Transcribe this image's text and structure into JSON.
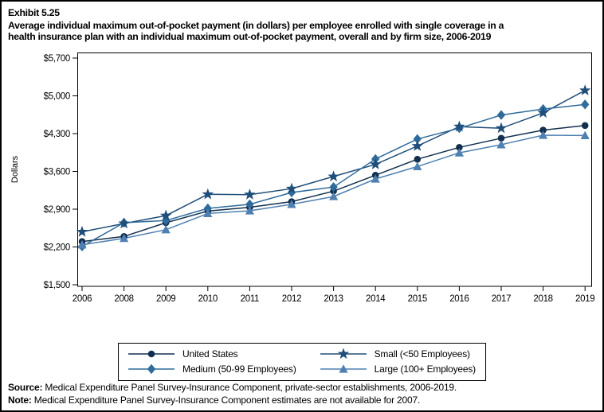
{
  "exhibit": {
    "number": "Exhibit 5.25",
    "title_line1": "Average individual maximum out-of-pocket payment (in dollars) per employee enrolled with single coverage in a",
    "title_line2": "health insurance plan with an individual maximum out-of-pocket payment, overall and by firm size, 2006-2019"
  },
  "chart_data": {
    "type": "line",
    "title": "",
    "xlabel": "",
    "ylabel": "Dollars",
    "x_categories": [
      "2006",
      "2008",
      "2009",
      "2010",
      "2011",
      "2012",
      "2013",
      "2014",
      "2015",
      "2016",
      "2017",
      "2018",
      "2019"
    ],
    "y_ticks": [
      1500,
      2200,
      2900,
      3600,
      4300,
      5000,
      5700
    ],
    "y_tick_labels": [
      "$1,500",
      "$2,200",
      "$2,900",
      "$3,600",
      "$4,300",
      "$5,000",
      "$5,700"
    ],
    "ylim": [
      1500,
      5700
    ],
    "grid": false,
    "legend_position": "bottom",
    "note": "2007 omitted - estimates not available",
    "series": [
      {
        "name": "United States",
        "marker": "circle",
        "color": "#12304e",
        "values": [
          2300,
          2395,
          2650,
          2865,
          2935,
          3040,
          3235,
          3530,
          3825,
          4045,
          4215,
          4365,
          4450
        ]
      },
      {
        "name": "Small (<50 Employees)",
        "marker": "star",
        "color": "#1f4e79",
        "values": [
          2480,
          2635,
          2780,
          3175,
          3170,
          3280,
          3505,
          3730,
          4070,
          4430,
          4400,
          4685,
          5100
        ]
      },
      {
        "name": "Medium (50-99 Employees)",
        "marker": "diamond",
        "color": "#2f6b9b",
        "values": [
          2210,
          2650,
          2690,
          2915,
          2990,
          3210,
          3310,
          3830,
          4200,
          4400,
          4645,
          4755,
          4840
        ]
      },
      {
        "name": "Large (100+ Employees)",
        "marker": "triangle",
        "color": "#4f80b2",
        "values": [
          2240,
          2360,
          2520,
          2820,
          2870,
          2990,
          3135,
          3460,
          3690,
          3945,
          4095,
          4270,
          4265
        ]
      }
    ],
    "legend_display_order": [
      0,
      1,
      2,
      3
    ]
  },
  "footer": {
    "source_label": "Source:",
    "source_text": " Medical Expenditure Panel Survey-Insurance Component, private-sector establishments, 2006-2019.",
    "note_label": "Note:",
    "note_text": " Medical Expenditure Panel Survey-Insurance Component estimates are not available for 2007."
  }
}
